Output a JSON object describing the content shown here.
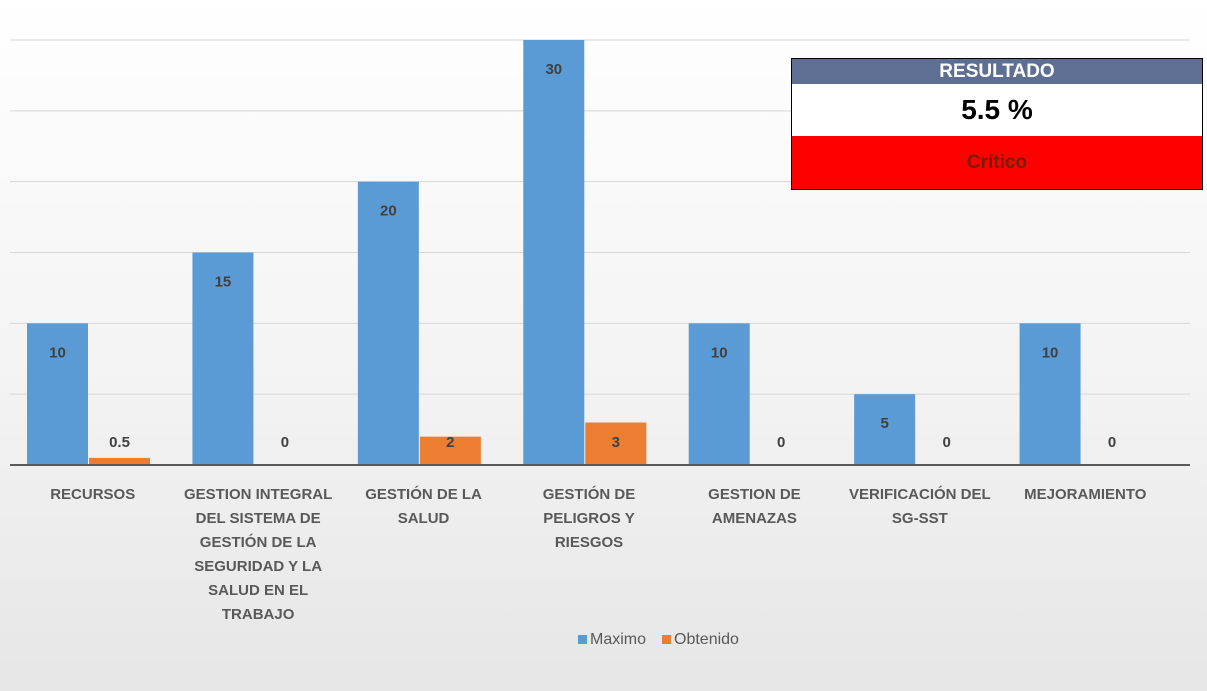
{
  "chart_data": {
    "type": "bar",
    "categories": [
      "RECURSOS",
      "GESTION INTEGRAL DEL SISTEMA DE GESTIÓN DE LA SEGURIDAD Y LA SALUD EN EL TRABAJO",
      "GESTIÓN DE LA SALUD",
      "GESTIÓN DE PELIGROS Y RIESGOS",
      "GESTION DE AMENAZAS",
      "VERIFICACIÓN DEL SG-SST",
      "MEJORAMIENTO"
    ],
    "series": [
      {
        "name": "Maximo",
        "color": "#5b9bd5",
        "values": [
          10,
          15,
          20,
          30,
          10,
          5,
          10
        ]
      },
      {
        "name": "Obtenido",
        "color": "#ed7d31",
        "values": [
          0.5,
          0,
          2,
          3,
          0,
          0,
          0
        ]
      }
    ],
    "ylim": [
      0,
      30
    ],
    "yticks": [
      0,
      5,
      10,
      15,
      20,
      25,
      30
    ],
    "grid": true,
    "legend": "bottom"
  },
  "result_box": {
    "title": "RESULTADO",
    "value": "5.5 %",
    "status": "Crítico"
  }
}
